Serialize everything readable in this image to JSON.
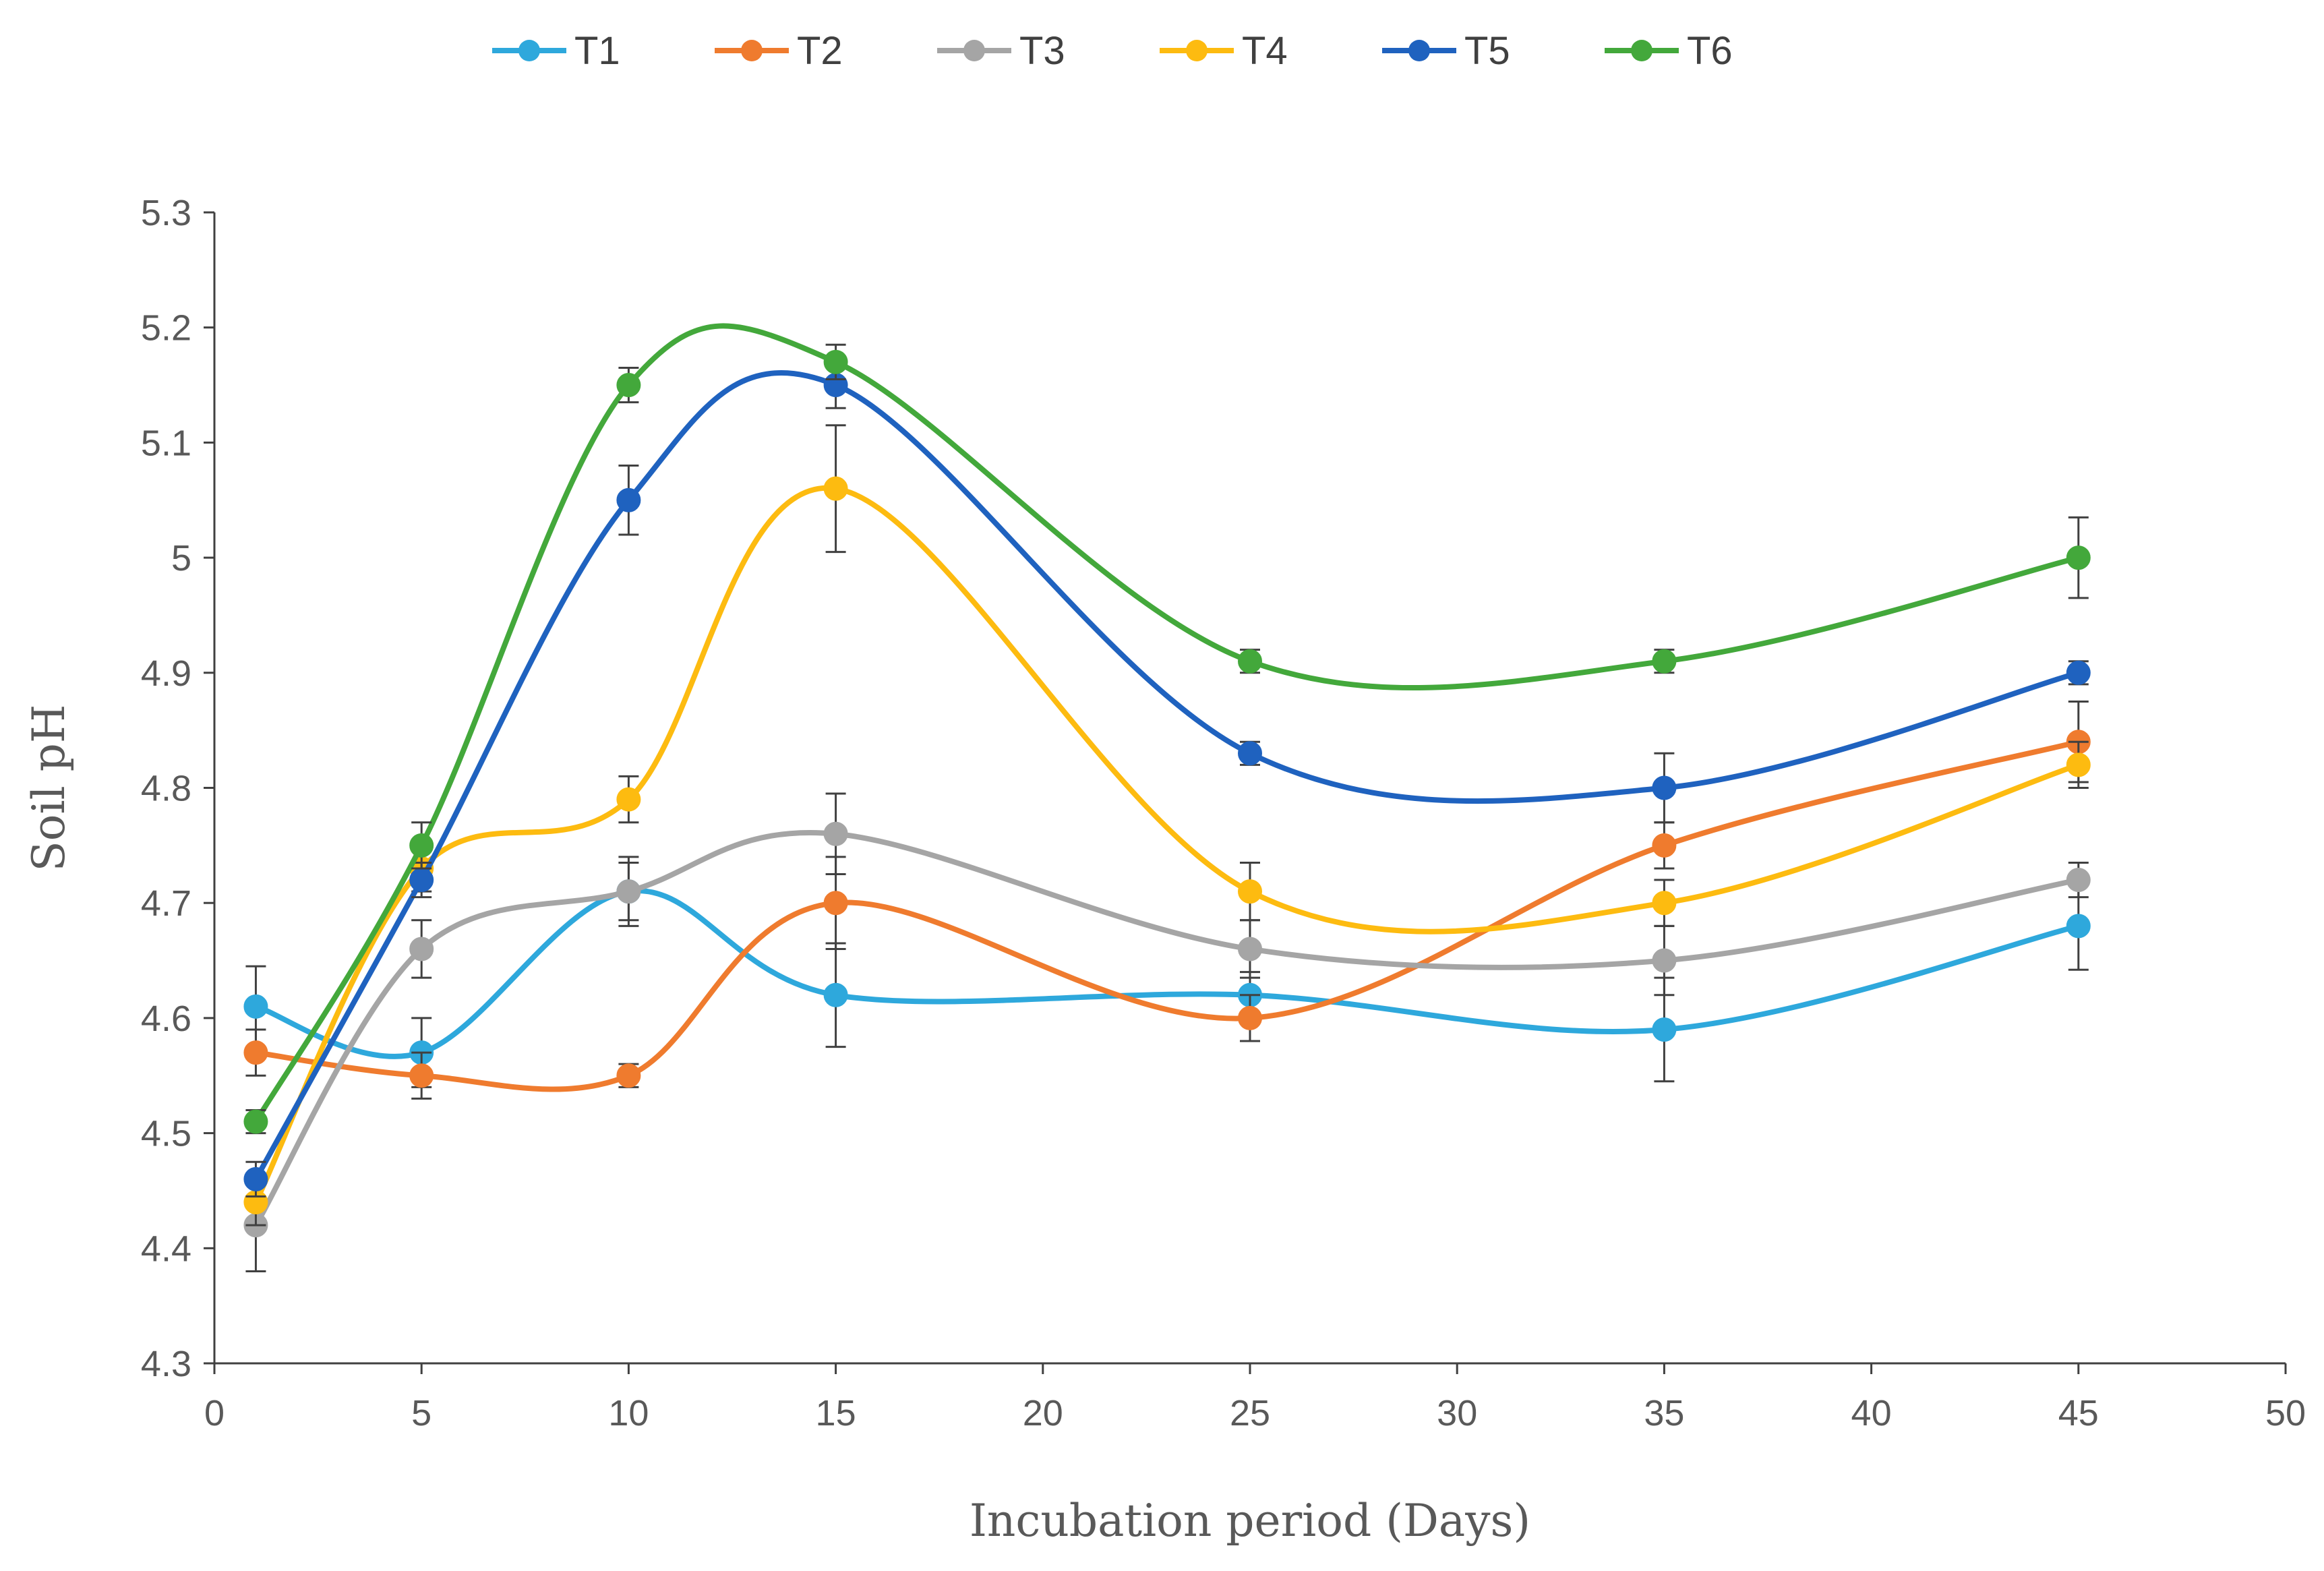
{
  "chart_data": {
    "type": "line",
    "title": "",
    "xlabel": "Incubation period (Days)",
    "ylabel": "Soil pH",
    "xlim": [
      0,
      50
    ],
    "ylim": [
      4.3,
      5.3
    ],
    "x_ticks": [
      "0",
      "5",
      "10",
      "15",
      "20",
      "25",
      "30",
      "35",
      "40",
      "45",
      "50"
    ],
    "y_ticks": [
      "4.3",
      "4.4",
      "4.5",
      "4.6",
      "4.7",
      "4.8",
      "4.9",
      "5",
      "5.1",
      "5.2",
      "5.3"
    ],
    "grid": false,
    "legend_position": "top-center",
    "x": [
      1,
      5,
      10,
      15,
      25,
      35,
      45
    ],
    "series": [
      {
        "name": "T1",
        "color": "#2ea8dc",
        "values": [
          4.61,
          4.57,
          4.71,
          4.62,
          4.62,
          4.59,
          4.68
        ],
        "errors": [
          0.035,
          0.03,
          0.025,
          0.045,
          0.02,
          0.045,
          0.038
        ]
      },
      {
        "name": "T2",
        "color": "#ef7b2e",
        "values": [
          4.57,
          4.55,
          4.55,
          4.7,
          4.6,
          4.75,
          4.84
        ],
        "errors": [
          0.02,
          0.02,
          0.01,
          0.04,
          0.02,
          0.02,
          0.035
        ]
      },
      {
        "name": "T3",
        "color": "#a5a5a5",
        "values": [
          4.42,
          4.66,
          4.71,
          4.76,
          4.66,
          4.65,
          4.72
        ],
        "errors": [
          0.04,
          0.025,
          0.03,
          0.035,
          0.025,
          0.03,
          0.015
        ]
      },
      {
        "name": "T4",
        "color": "#fdbb10",
        "values": [
          4.44,
          4.73,
          4.79,
          5.06,
          4.71,
          4.7,
          4.82
        ],
        "errors": [
          0.02,
          0.02,
          0.02,
          0.055,
          0.025,
          0.02,
          0.02
        ]
      },
      {
        "name": "T5",
        "color": "#1f62bf",
        "values": [
          4.46,
          4.72,
          5.05,
          5.15,
          4.83,
          4.8,
          4.9
        ],
        "errors": [
          0.015,
          0.015,
          0.03,
          0.02,
          0.01,
          0.03,
          0.01
        ]
      },
      {
        "name": "T6",
        "color": "#43a83b",
        "values": [
          4.51,
          4.75,
          5.15,
          5.17,
          4.91,
          4.91,
          5.0
        ],
        "errors": [
          0.01,
          0.02,
          0.015,
          0.015,
          0.01,
          0.01,
          0.035
        ]
      }
    ]
  }
}
